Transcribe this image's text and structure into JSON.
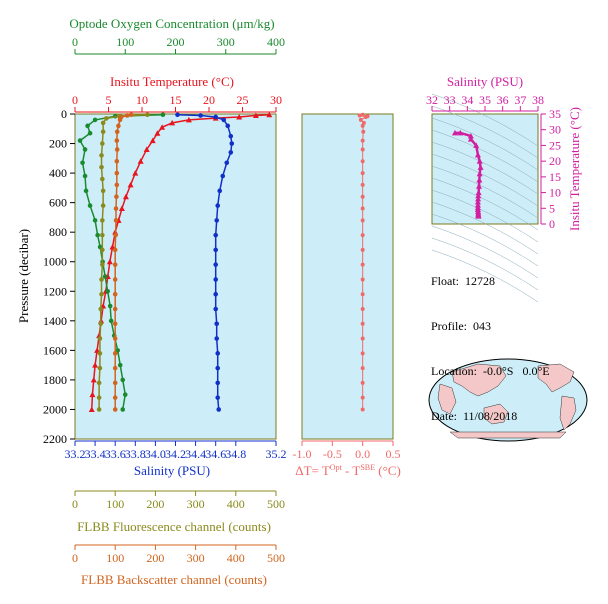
{
  "colors": {
    "oxygen": "#1a8a2e",
    "temperature": "#e8141e",
    "salinity": "#1030c8",
    "fluorescence": "#8a8a1e",
    "backscatter": "#d2641e",
    "delta_t": "#f06a6a",
    "salinity_inset": "#d21ea0",
    "panel_bg": "#cdeef8",
    "frame": "#7a7a1e",
    "land": "#f4c8c8",
    "ocean": "#cdeef8"
  },
  "info": {
    "float_label": "Float:",
    "float_value": "12728",
    "profile_label": "Profile:",
    "profile_value": "043",
    "location_label": "Location:",
    "location_value": "-0.0°S   0.0°E",
    "date_label": "Date:",
    "date_value": "11/08/2018"
  },
  "chart_data": [
    {
      "type": "line",
      "panel": "main-profile",
      "ylabel": "Pressure (decibar)",
      "ylim": [
        2200,
        0
      ],
      "yticks": [
        0,
        200,
        400,
        600,
        800,
        1000,
        1200,
        1400,
        1600,
        1800,
        2000,
        2200
      ],
      "axes": {
        "oxygen": {
          "label": "Optode Oxygen Concentration (μm/kg)",
          "range": [
            0,
            400
          ],
          "ticks": [
            0,
            100,
            200,
            300,
            400
          ]
        },
        "temperature": {
          "label": "Insitu Temperature (°C)",
          "range": [
            0,
            30
          ],
          "ticks": [
            0,
            5,
            10,
            15,
            20,
            25,
            30
          ]
        },
        "salinity": {
          "label": "Salinity (PSU)",
          "range": [
            33.2,
            35.2
          ],
          "ticks": [
            "33.2",
            "33.4",
            "33.6",
            "33.8",
            "34.0",
            "34.2",
            "34.4",
            "34.6",
            "34.8",
            "35.2"
          ]
        },
        "fluorescence": {
          "label": "FLBB Fluorescence channel (counts)",
          "range": [
            0,
            500
          ],
          "ticks": [
            0,
            100,
            200,
            300,
            400,
            500
          ]
        },
        "backscatter": {
          "label": "FLBB Backscatter channel (counts)",
          "range": [
            0,
            500
          ],
          "ticks": [
            0,
            100,
            200,
            300,
            400,
            500
          ]
        }
      },
      "series": [
        {
          "key": "temperature",
          "points": [
            [
              29.0,
              5
            ],
            [
              27.0,
              10
            ],
            [
              24.5,
              20
            ],
            [
              21.0,
              28
            ],
            [
              17.0,
              40
            ],
            [
              14.5,
              60
            ],
            [
              13.0,
              90
            ],
            [
              12.3,
              130
            ],
            [
              11.6,
              180
            ],
            [
              10.7,
              240
            ],
            [
              9.8,
              320
            ],
            [
              9.0,
              400
            ],
            [
              8.3,
              480
            ],
            [
              7.6,
              560
            ],
            [
              7.0,
              640
            ],
            [
              6.5,
              720
            ],
            [
              6.0,
              800
            ],
            [
              5.6,
              900
            ],
            [
              5.2,
              1000
            ],
            [
              4.9,
              1100
            ],
            [
              4.6,
              1200
            ],
            [
              4.2,
              1300
            ],
            [
              3.9,
              1400
            ],
            [
              3.6,
              1500
            ],
            [
              3.3,
              1600
            ],
            [
              3.0,
              1700
            ],
            [
              2.8,
              1800
            ],
            [
              2.6,
              1900
            ],
            [
              2.5,
              2000
            ]
          ]
        },
        {
          "key": "salinity",
          "points": [
            [
              34.22,
              5
            ],
            [
              34.45,
              10
            ],
            [
              34.6,
              20
            ],
            [
              34.68,
              40
            ],
            [
              34.72,
              80
            ],
            [
              34.75,
              150
            ],
            [
              34.76,
              200
            ],
            [
              34.75,
              260
            ],
            [
              34.71,
              330
            ],
            [
              34.67,
              420
            ],
            [
              34.64,
              520
            ],
            [
              34.62,
              620
            ],
            [
              34.61,
              720
            ],
            [
              34.6,
              820
            ],
            [
              34.6,
              920
            ],
            [
              34.6,
              1020
            ],
            [
              34.6,
              1120
            ],
            [
              34.6,
              1220
            ],
            [
              34.6,
              1320
            ],
            [
              34.61,
              1420
            ],
            [
              34.61,
              1520
            ],
            [
              34.62,
              1620
            ],
            [
              34.62,
              1720
            ],
            [
              34.62,
              1820
            ],
            [
              34.62,
              1920
            ],
            [
              34.63,
              2000
            ]
          ]
        },
        {
          "key": "oxygen",
          "points": [
            [
              175,
              5
            ],
            [
              80,
              15
            ],
            [
              40,
              40
            ],
            [
              25,
              80
            ],
            [
              30,
              130
            ],
            [
              10,
              180
            ],
            [
              20,
              240
            ],
            [
              15,
              330
            ],
            [
              20,
              420
            ],
            [
              22,
              520
            ],
            [
              30,
              620
            ],
            [
              40,
              720
            ],
            [
              45,
              820
            ],
            [
              50,
              900
            ],
            [
              55,
              1000
            ],
            [
              60,
              1100
            ],
            [
              65,
              1200
            ],
            [
              70,
              1300
            ],
            [
              72,
              1400
            ],
            [
              78,
              1500
            ],
            [
              85,
              1600
            ],
            [
              90,
              1700
            ],
            [
              95,
              1800
            ],
            [
              100,
              1900
            ],
            [
              95,
              2000
            ]
          ]
        },
        {
          "key": "fluorescence",
          "points": [
            [
              180,
              5
            ],
            [
              110,
              15
            ],
            [
              78,
              30
            ],
            [
              70,
              60
            ],
            [
              70,
              120
            ],
            [
              68,
              200
            ],
            [
              66,
              280
            ],
            [
              66,
              360
            ],
            [
              68,
              440
            ],
            [
              70,
              520
            ],
            [
              70,
              620
            ],
            [
              68,
              720
            ],
            [
              68,
              820
            ],
            [
              68,
              920
            ],
            [
              68,
              1020
            ],
            [
              66,
              1120
            ],
            [
              66,
              1220
            ],
            [
              64,
              1320
            ],
            [
              64,
              1420
            ],
            [
              62,
              1520
            ],
            [
              62,
              1620
            ],
            [
              62,
              1720
            ],
            [
              60,
              1820
            ],
            [
              60,
              1920
            ],
            [
              60,
              2000
            ]
          ]
        },
        {
          "key": "backscatter",
          "points": [
            [
              140,
              5
            ],
            [
              130,
              10
            ],
            [
              115,
              20
            ],
            [
              112,
              40
            ],
            [
              108,
              80
            ],
            [
              105,
              120
            ],
            [
              104,
              180
            ],
            [
              105,
              240
            ],
            [
              104,
              320
            ],
            [
              104,
              400
            ],
            [
              104,
              480
            ],
            [
              103,
              560
            ],
            [
              102,
              640
            ],
            [
              102,
              720
            ],
            [
              101,
              820
            ],
            [
              100,
              920
            ],
            [
              100,
              1020
            ],
            [
              100,
              1120
            ],
            [
              100,
              1220
            ],
            [
              100,
              1320
            ],
            [
              100,
              1420
            ],
            [
              100,
              1520
            ],
            [
              100,
              1620
            ],
            [
              100,
              1720
            ],
            [
              100,
              1820
            ],
            [
              100,
              1920
            ],
            [
              100,
              2000
            ]
          ]
        }
      ]
    },
    {
      "type": "scatter",
      "panel": "delta-t",
      "xlabel": "ΔT= T^Opt - T^SBE (°C)",
      "xlim": [
        -1.0,
        0.5
      ],
      "xticks": [
        "-1.0",
        "-0.5",
        "0.0",
        "0.5"
      ],
      "ylim": [
        2200,
        0
      ],
      "points": [
        [
          0.0,
          5
        ],
        [
          -0.05,
          10
        ],
        [
          0.08,
          15
        ],
        [
          0.05,
          20
        ],
        [
          -0.03,
          40
        ],
        [
          0.02,
          60
        ],
        [
          0.0,
          80
        ],
        [
          0.01,
          120
        ],
        [
          0.0,
          180
        ],
        [
          0.0,
          240
        ],
        [
          0.0,
          320
        ],
        [
          0.0,
          400
        ],
        [
          0.0,
          480
        ],
        [
          0.0,
          560
        ],
        [
          0.0,
          640
        ],
        [
          0.0,
          720
        ],
        [
          0.0,
          820
        ],
        [
          0.0,
          920
        ],
        [
          0.0,
          1020
        ],
        [
          0.0,
          1120
        ],
        [
          0.0,
          1220
        ],
        [
          0.0,
          1320
        ],
        [
          0.0,
          1420
        ],
        [
          0.0,
          1520
        ],
        [
          0.0,
          1620
        ],
        [
          0.0,
          1720
        ],
        [
          0.0,
          1820
        ],
        [
          0.0,
          1920
        ],
        [
          0.0,
          2000
        ]
      ]
    },
    {
      "type": "scatter",
      "panel": "ts-diagram",
      "title": "Salinity (PSU)",
      "ylabel": "Insitu Temperature (°C)",
      "xlim": [
        32,
        38
      ],
      "ylim": [
        0,
        35
      ],
      "xticks": [
        32,
        33,
        34,
        35,
        36,
        37,
        38
      ],
      "yticks": [
        0,
        5,
        10,
        15,
        20,
        25,
        30,
        35
      ],
      "points": [
        [
          33.3,
          29
        ],
        [
          33.6,
          29
        ],
        [
          34.2,
          28
        ],
        [
          34.2,
          27
        ],
        [
          34.5,
          25
        ],
        [
          34.6,
          22
        ],
        [
          34.7,
          20
        ],
        [
          34.75,
          18
        ],
        [
          34.7,
          16
        ],
        [
          34.68,
          14
        ],
        [
          34.66,
          12
        ],
        [
          34.64,
          10
        ],
        [
          34.62,
          9
        ],
        [
          34.61,
          8
        ],
        [
          34.6,
          7
        ],
        [
          34.6,
          6
        ],
        [
          34.6,
          5.2
        ],
        [
          34.6,
          4.6
        ],
        [
          34.61,
          4.0
        ],
        [
          34.62,
          3.5
        ],
        [
          34.62,
          3.0
        ],
        [
          34.62,
          2.8
        ],
        [
          34.63,
          2.5
        ]
      ]
    }
  ]
}
